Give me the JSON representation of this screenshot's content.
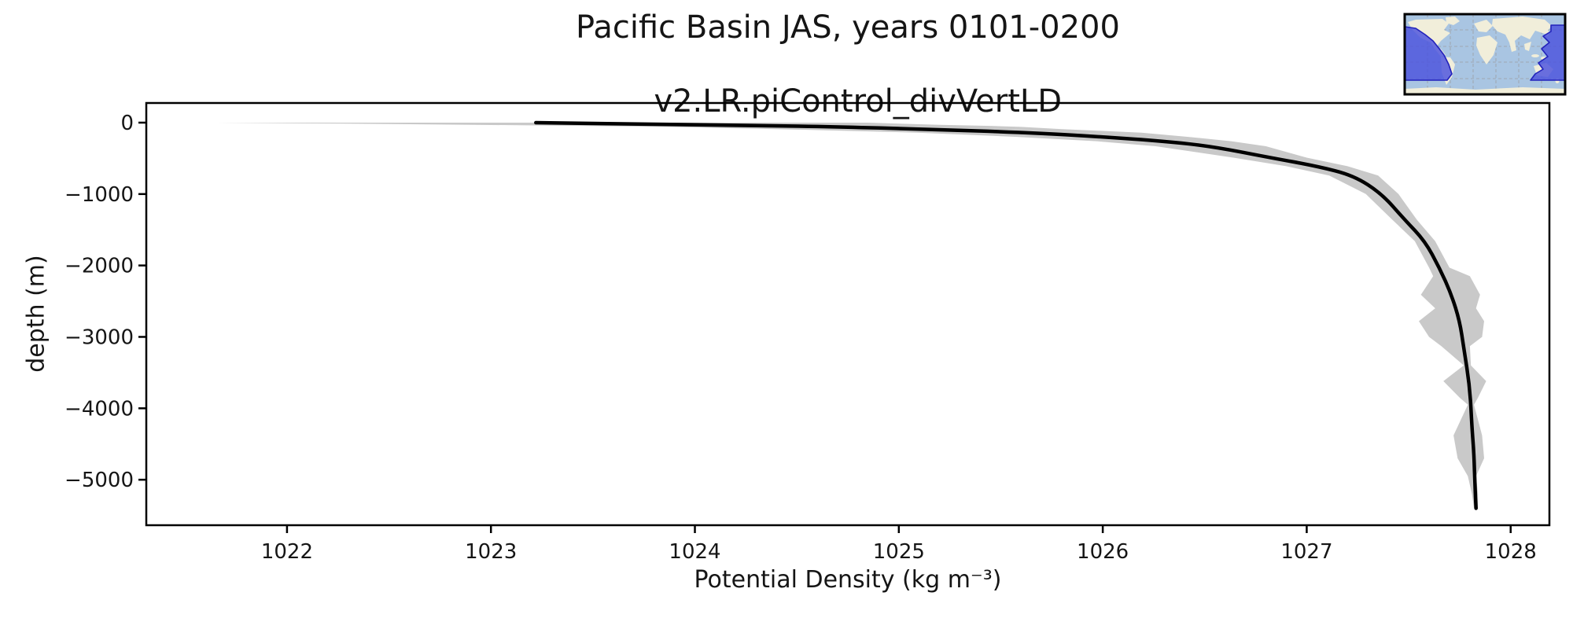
{
  "figure": {
    "title_line1": "Pacific Basin JAS, years 0101-0200",
    "title_line2": "v2.LR.piControl_divVertLD",
    "xlabel": "Potential Density (kg m⁻³)",
    "ylabel": "depth (m)"
  },
  "chart_data": {
    "type": "line",
    "title": "Pacific Basin JAS, years 0101-0200",
    "subtitle": "v2.LR.piControl_divVertLD",
    "xlabel": "Potential Density (kg m⁻³)",
    "ylabel": "depth (m)",
    "xlim": [
      1021.31,
      1028.19
    ],
    "ylim": [
      -5637,
      275
    ],
    "grid": false,
    "legend_position": "none",
    "x_ticks": {
      "values": [
        1022,
        1023,
        1024,
        1025,
        1026,
        1027,
        1028
      ],
      "labels": [
        "1022",
        "1023",
        "1024",
        "1025",
        "1026",
        "1027",
        "1028"
      ]
    },
    "y_ticks": {
      "values": [
        0,
        -1000,
        -2000,
        -3000,
        -4000,
        -5000
      ],
      "labels": [
        "0",
        "−1000",
        "−2000",
        "−3000",
        "−4000",
        "−5000"
      ]
    },
    "series": [
      {
        "name": "mean potential density profile",
        "type": "line",
        "color": "#000000",
        "line_width": 4.5,
        "depth_m": [
          0,
          -15,
          -30,
          -45,
          -60,
          -90,
          -140,
          -200,
          -260,
          -330,
          -490,
          -610,
          -740,
          -1000,
          -1360,
          -1660,
          -2030,
          -2410,
          -2780,
          -3150,
          -3710,
          -4270,
          -4640,
          -5090,
          -5400
        ],
        "density_kg_m3": [
          1023.22,
          1023.6,
          1024.0,
          1024.4,
          1024.72,
          1025.1,
          1025.64,
          1026.0,
          1026.3,
          1026.53,
          1026.82,
          1027.05,
          1027.23,
          1027.37,
          1027.48,
          1027.58,
          1027.65,
          1027.71,
          1027.75,
          1027.77,
          1027.8,
          1027.81,
          1027.82,
          1027.825,
          1027.83
        ]
      },
      {
        "name": "density spread envelope",
        "type": "band",
        "color": "#c9c9c9",
        "depth_m": [
          0,
          -15,
          -30,
          -45,
          -60,
          -90,
          -140,
          -200,
          -260,
          -330,
          -490,
          -610,
          -740,
          -1000,
          -1360,
          -1660,
          -2030,
          -2150,
          -2410,
          -2600,
          -2780,
          -3000,
          -3130,
          -3400,
          -3620,
          -3850,
          -3950,
          -4380,
          -4700,
          -4950,
          -5200,
          -5400
        ],
        "lower": [
          1021.65,
          1022.3,
          1022.9,
          1023.45,
          1023.87,
          1024.4,
          1025.09,
          1025.58,
          1025.97,
          1026.26,
          1026.64,
          1026.9,
          1027.11,
          1027.29,
          1027.42,
          1027.53,
          1027.6,
          1027.62,
          1027.56,
          1027.63,
          1027.55,
          1027.6,
          1027.66,
          1027.77,
          1027.67,
          1027.75,
          1027.79,
          1027.72,
          1027.74,
          1027.79,
          1027.81,
          1027.82
        ],
        "upper": [
          1024.85,
          1025.0,
          1025.2,
          1025.45,
          1025.6,
          1025.8,
          1026.19,
          1026.42,
          1026.63,
          1026.8,
          1027.0,
          1027.2,
          1027.35,
          1027.45,
          1027.54,
          1027.63,
          1027.7,
          1027.8,
          1027.85,
          1027.83,
          1027.87,
          1027.86,
          1027.8,
          1027.805,
          1027.88,
          1027.84,
          1027.82,
          1027.86,
          1027.87,
          1027.83,
          1027.84,
          1027.84
        ]
      }
    ]
  },
  "inset_map": {
    "description": "world locator map with the Pacific Basin region highlighted",
    "highlight_region": "Pacific Basin",
    "colors": {
      "ocean": "#a9c5e2",
      "land": "#f1eeda",
      "highlight": "#4a52dd",
      "highlight_border": "#2222bb",
      "grid": "#999999",
      "border": "#000000"
    }
  }
}
